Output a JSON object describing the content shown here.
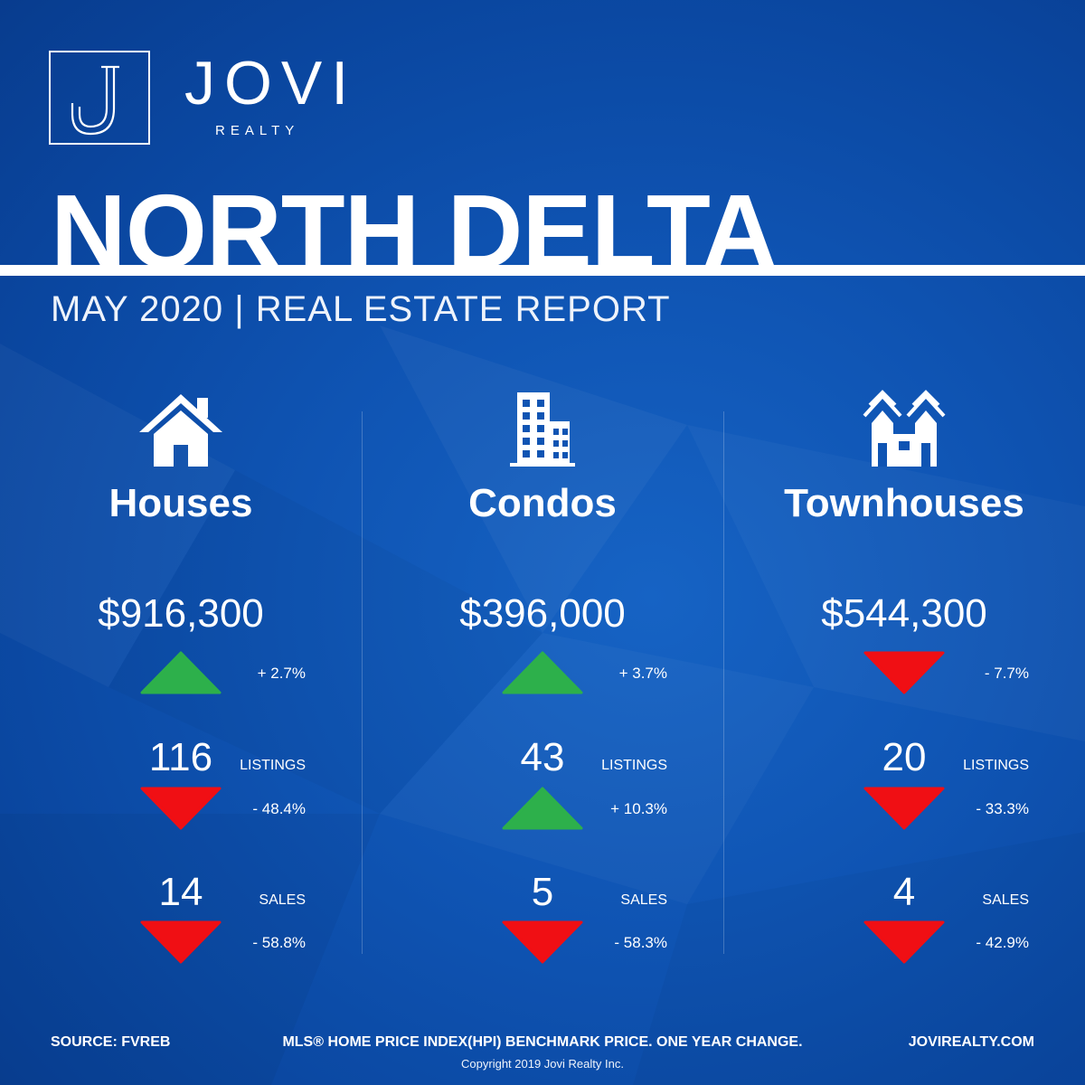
{
  "brand": {
    "name": "JOVI",
    "sub": "REALTY",
    "mark": "J"
  },
  "title": "NORTH DELTA",
  "subtitle": "MAY 2020 | REAL ESTATE REPORT",
  "colors": {
    "background": "#0b4aa6",
    "up": "#2db04b",
    "down": "#f00f14",
    "text": "#ffffff"
  },
  "columns": [
    {
      "icon": "house-icon",
      "name": "Houses",
      "price": "$916,300",
      "price_change": "+ 2.7%",
      "price_trend": "up",
      "listings": "116",
      "listings_label": "LISTINGS",
      "listings_change": "- 48.4%",
      "listings_trend": "down",
      "sales": "14",
      "sales_label": "SALES",
      "sales_change": "- 58.8%",
      "sales_trend": "down"
    },
    {
      "icon": "condo-building-icon",
      "name": "Condos",
      "price": "$396,000",
      "price_change": "+ 3.7%",
      "price_trend": "up",
      "listings": "43",
      "listings_label": "LISTINGS",
      "listings_change": "+ 10.3%",
      "listings_trend": "up",
      "sales": "5",
      "sales_label": "SALES",
      "sales_change": "- 58.3%",
      "sales_trend": "down"
    },
    {
      "icon": "townhouse-icon",
      "name": "Townhouses",
      "price": "$544,300",
      "price_change": "- 7.7%",
      "price_trend": "down",
      "listings": "20",
      "listings_label": "LISTINGS",
      "listings_change": "- 33.3%",
      "listings_trend": "down",
      "sales": "4",
      "sales_label": "SALES",
      "sales_change": "- 42.9%",
      "sales_trend": "down"
    }
  ],
  "footer": {
    "source": "SOURCE:  FVREB",
    "note": "MLS® HOME PRICE INDEX(HPI) BENCHMARK PRICE. ONE YEAR CHANGE.",
    "website": "JOVIREALTY.COM",
    "copyright": "Copyright 2019 Jovi Realty Inc."
  }
}
